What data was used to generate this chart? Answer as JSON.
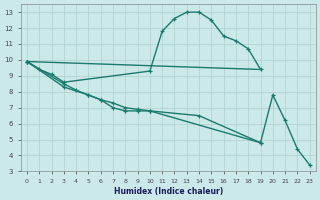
{
  "xlabel": "Humidex (Indice chaleur)",
  "bg_color": "#cce9e9",
  "grid_color": "#afd0d0",
  "line_color": "#1a7a6e",
  "line1_x": [
    0,
    1,
    2,
    3,
    10,
    11,
    12,
    13,
    14,
    15,
    16,
    17,
    18,
    19
  ],
  "line1_y": [
    9.9,
    9.4,
    9.1,
    8.6,
    9.3,
    11.8,
    12.6,
    13.0,
    13.0,
    12.5,
    11.5,
    11.2,
    10.7,
    9.4
  ],
  "line2_x": [
    0,
    19
  ],
  "line2_y": [
    9.9,
    9.4
  ],
  "line3_x": [
    0,
    3,
    5,
    6,
    7,
    8,
    9,
    10,
    14,
    19,
    20,
    21,
    22,
    23
  ],
  "line3_y": [
    9.9,
    8.3,
    7.8,
    7.5,
    7.0,
    6.8,
    6.8,
    6.8,
    6.5,
    4.8,
    7.8,
    6.2,
    4.4,
    3.4
  ],
  "line4_x": [
    0,
    3,
    4,
    5,
    6,
    7,
    8,
    9,
    10,
    19
  ],
  "line4_y": [
    9.9,
    8.5,
    8.1,
    7.8,
    7.5,
    7.3,
    7.0,
    6.9,
    6.8,
    4.8
  ],
  "xlim": [
    -0.5,
    23.5
  ],
  "ylim": [
    3,
    13.5
  ],
  "yticks": [
    3,
    4,
    5,
    6,
    7,
    8,
    9,
    10,
    11,
    12,
    13
  ],
  "xticks": [
    0,
    1,
    2,
    3,
    4,
    5,
    6,
    7,
    8,
    9,
    10,
    11,
    12,
    13,
    14,
    15,
    16,
    17,
    18,
    19,
    20,
    21,
    22,
    23
  ]
}
